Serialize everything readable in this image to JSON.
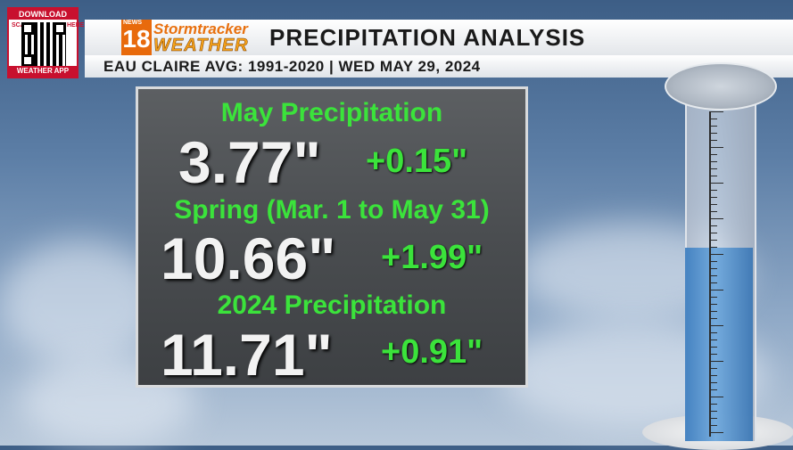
{
  "qr": {
    "top_text": "DOWNLOAD",
    "left_text": "SCAN",
    "right_text": "HERE",
    "bottom_text": "WEATHER APP"
  },
  "logo": {
    "news_label": "NEWS",
    "channel": "18",
    "brand_top": "Stormtracker",
    "brand_bottom": "WEATHER"
  },
  "header": {
    "title": "PRECIPITATION ANALYSIS",
    "subtitle": "EAU CLAIRE AVG: 1991-2020 | WED MAY 29, 2024"
  },
  "sections": [
    {
      "title": "May Precipitation",
      "value": "3.77\"",
      "departure": "+0.15\""
    },
    {
      "title": "Spring (Mar. 1 to May 31)",
      "value": "10.66\"",
      "departure": "+1.99\""
    },
    {
      "title": "2024 Precipitation",
      "value": "11.71\"",
      "departure": "+0.91\""
    }
  ],
  "gauge": {
    "fill_fraction": 0.55,
    "water_color": "#5a96d0"
  },
  "colors": {
    "accent_green": "#3be33b",
    "brand_orange": "#e86a0c"
  }
}
